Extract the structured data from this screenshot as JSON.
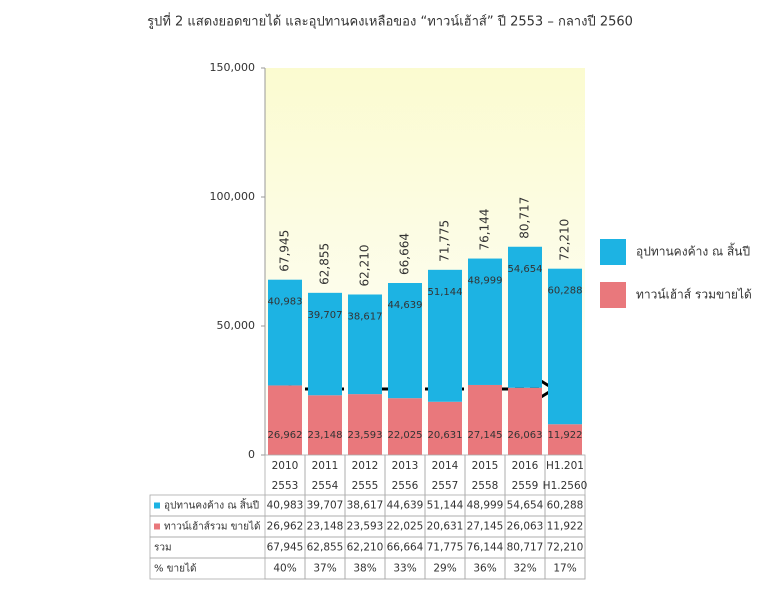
{
  "chart_data": {
    "type": "stacked-bar",
    "title": "รูปที่ 2 แสดงยอดขายได้ และอุปทานคงเหลือของ “ทาวน์เฮ้าส์” ปี 2553 – กลางปี 2560",
    "categories": [
      "2010",
      "2011",
      "2012",
      "2013",
      "2014",
      "2015",
      "2016",
      "H1.201"
    ],
    "categories_be": [
      "2553",
      "2554",
      "2555",
      "2556",
      "2557",
      "2558",
      "2559",
      "H1.2560"
    ],
    "series": [
      {
        "name": "ทาวน์เฮ้าส์ รวมขายได้",
        "color": "#e9787c",
        "values": [
          26962,
          23148,
          23593,
          22025,
          20631,
          27145,
          26063,
          11922
        ],
        "value_labels": [
          "26,962",
          "23,148",
          "23,593",
          "22,025",
          "20,631",
          "27,145",
          "26,063",
          "11,922"
        ]
      },
      {
        "name": "อุปทานคงค้าง ณ สิ้นปี",
        "color": "#1db3e3",
        "values": [
          40983,
          39707,
          38617,
          44639,
          51144,
          48999,
          54654,
          60288
        ],
        "value_labels": [
          "40,983",
          "39,707",
          "38,617",
          "44,639",
          "51,144",
          "48,999",
          "54,654",
          "60,288"
        ]
      }
    ],
    "total_labels": [
      "67,945",
      "62,855",
      "62,210",
      "66,664",
      "71,775",
      "76,144",
      "80,717",
      "72,210"
    ],
    "ylim": [
      0,
      150000
    ],
    "yticks": [
      0,
      {
        "value": 50000,
        "label": "50,000"
      },
      {
        "value": 100000,
        "label": "100,000"
      },
      {
        "value": 150000,
        "label": "150,000"
      }
    ],
    "grid": false,
    "legend": "right",
    "table": {
      "row_labels": [
        "อุปทานคงค้าง ณ สิ้นปี",
        "ทาวน์เฮ้าส์รวม ขายได้",
        "รวม",
        "% ขายได้"
      ],
      "percent_sold": [
        "40%",
        "37%",
        "38%",
        "33%",
        "29%",
        "36%",
        "32%",
        "17%"
      ]
    }
  }
}
